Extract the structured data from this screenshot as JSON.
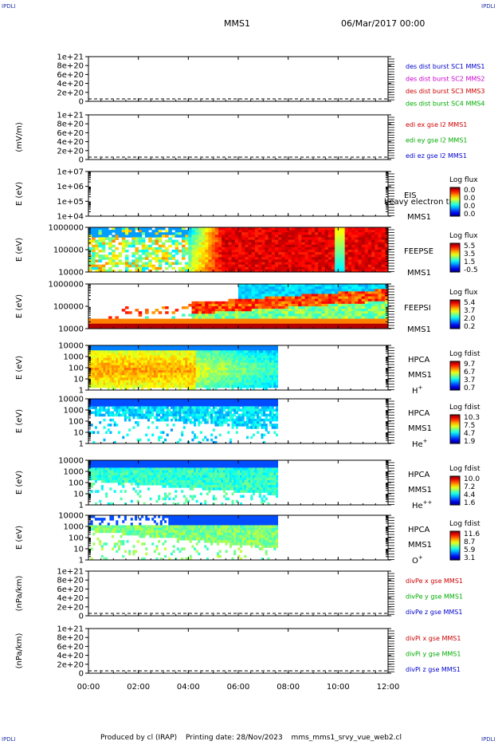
{
  "corner_label": "IPDLI",
  "header": {
    "spacecraft": "MMS1",
    "date": "06/Mar/2017 00:00"
  },
  "footer": {
    "produced_by": "Produced by cl (IRAP)",
    "printing_date": "Printing date: 28/Nov/2023",
    "script_name": "mms_mms1_srvy_vue_web2.cl"
  },
  "chart_data": [
    {
      "type": "line",
      "ylabel": "",
      "yticks": [
        "1e+21",
        "8e+20",
        "6e+20",
        "4e+20",
        "2e+20",
        "0"
      ],
      "legend": [
        {
          "text": "des dist burst SC1 MMS1",
          "color": "#0000cc"
        },
        {
          "text": "des dist burst SC2 MMS2",
          "color": "#cc00cc"
        },
        {
          "text": "des dist burst SC3 MMS3",
          "color": "#cc0000"
        },
        {
          "text": "des dist burst SC4 MMS4",
          "color": "#00aa00"
        }
      ]
    },
    {
      "type": "line",
      "ylabel": "(mV/m)",
      "yticks": [
        "1e+21",
        "8e+20",
        "6e+20",
        "4e+20",
        "2e+20",
        "0"
      ],
      "legend": [
        {
          "text": "edi ex gse l2 MMS1",
          "color": "#cc0000"
        },
        {
          "text": "edi ey gse l2 MMS1",
          "color": "#00aa00"
        },
        {
          "text": "edi ez gse l2 MMS1",
          "color": "#0000cc"
        }
      ]
    },
    {
      "type": "heatmap",
      "ylabel": "E (eV)",
      "yticks": [
        "1e+07",
        "1e+06",
        "1e+05",
        "1e+04"
      ],
      "instrument": "EIS",
      "spacecraft": "MMS1",
      "overlay_text": "heavy electron to",
      "colorbar_title": "Log flux",
      "colorbar_ticks": [
        "0.0",
        "0.0",
        "0.0",
        "0.0"
      ],
      "data_end": "12:00"
    },
    {
      "type": "heatmap",
      "ylabel": "E (eV)",
      "yticks": [
        "1000000",
        "100000",
        "10000"
      ],
      "instrument": "FEEPSE",
      "spacecraft": "MMS1",
      "colorbar_title": "Log flux",
      "colorbar_ticks": [
        "5.5",
        "3.5",
        "1.5",
        "-0.5"
      ],
      "data_end": "12:00"
    },
    {
      "type": "heatmap",
      "ylabel": "E (eV)",
      "yticks": [
        "1000000",
        "100000",
        "10000"
      ],
      "instrument": "FEEPSI",
      "spacecraft": "MMS1",
      "colorbar_title": "Log flux",
      "colorbar_ticks": [
        "5.4",
        "3.7",
        "2.0",
        "0.2"
      ],
      "data_end": "12:00"
    },
    {
      "type": "heatmap",
      "ylabel": "E (eV)",
      "yticks": [
        "10000",
        "1000",
        "100",
        "10",
        "1"
      ],
      "instrument": "HPCA",
      "spacecraft": "MMS1",
      "species": "H",
      "species_charge": "+",
      "colorbar_title": "Log fdist",
      "colorbar_ticks": [
        "9.7",
        "6.7",
        "3.7",
        "0.7"
      ],
      "data_end": "07:35"
    },
    {
      "type": "heatmap",
      "ylabel": "E (eV)",
      "yticks": [
        "10000",
        "1000",
        "100",
        "10",
        "1"
      ],
      "instrument": "HPCA",
      "spacecraft": "MMS1",
      "species": "He",
      "species_charge": "+",
      "colorbar_title": "Log fdist",
      "colorbar_ticks": [
        "10.3",
        "7.5",
        "4.7",
        "1.9"
      ],
      "data_end": "07:35"
    },
    {
      "type": "heatmap",
      "ylabel": "E (eV)",
      "yticks": [
        "10000",
        "1000",
        "100",
        "10",
        "1"
      ],
      "instrument": "HPCA",
      "spacecraft": "MMS1",
      "species": "He",
      "species_charge": "++",
      "colorbar_title": "Log fdist",
      "colorbar_ticks": [
        "10.0",
        "7.2",
        "4.4",
        "1.6"
      ],
      "data_end": "07:35"
    },
    {
      "type": "heatmap",
      "ylabel": "E (eV)",
      "yticks": [
        "10000",
        "1000",
        "100",
        "10",
        "1"
      ],
      "instrument": "HPCA",
      "spacecraft": "MMS1",
      "species": "O",
      "species_charge": "+",
      "colorbar_title": "Log fdist",
      "colorbar_ticks": [
        "11.6",
        "8.7",
        "5.9",
        "3.1"
      ],
      "data_end": "07:35"
    },
    {
      "type": "line",
      "ylabel": "(nPa/km)",
      "yticks": [
        "1e+21",
        "8e+20",
        "6e+20",
        "4e+20",
        "2e+20",
        "0"
      ],
      "legend": [
        {
          "text": "divPe x gse MMS1",
          "color": "#cc0000"
        },
        {
          "text": "divPe y gse MMS1",
          "color": "#00aa00"
        },
        {
          "text": "divPe z gse MMS1",
          "color": "#0000cc"
        }
      ]
    },
    {
      "type": "line",
      "ylabel": "(nPa/km)",
      "yticks": [
        "1e+21",
        "8e+20",
        "6e+20",
        "4e+20",
        "2e+20",
        "0"
      ],
      "legend": [
        {
          "text": "divPi x gse MMS1",
          "color": "#cc0000"
        },
        {
          "text": "divPi y gse MMS1",
          "color": "#00aa00"
        },
        {
          "text": "divPi z gse MMS1",
          "color": "#0000cc"
        }
      ]
    }
  ],
  "time_axis": {
    "ticks": [
      "00:00",
      "02:00",
      "04:00",
      "06:00",
      "08:00",
      "10:00",
      "12:00"
    ],
    "range": [
      "00:00",
      "12:00"
    ]
  }
}
